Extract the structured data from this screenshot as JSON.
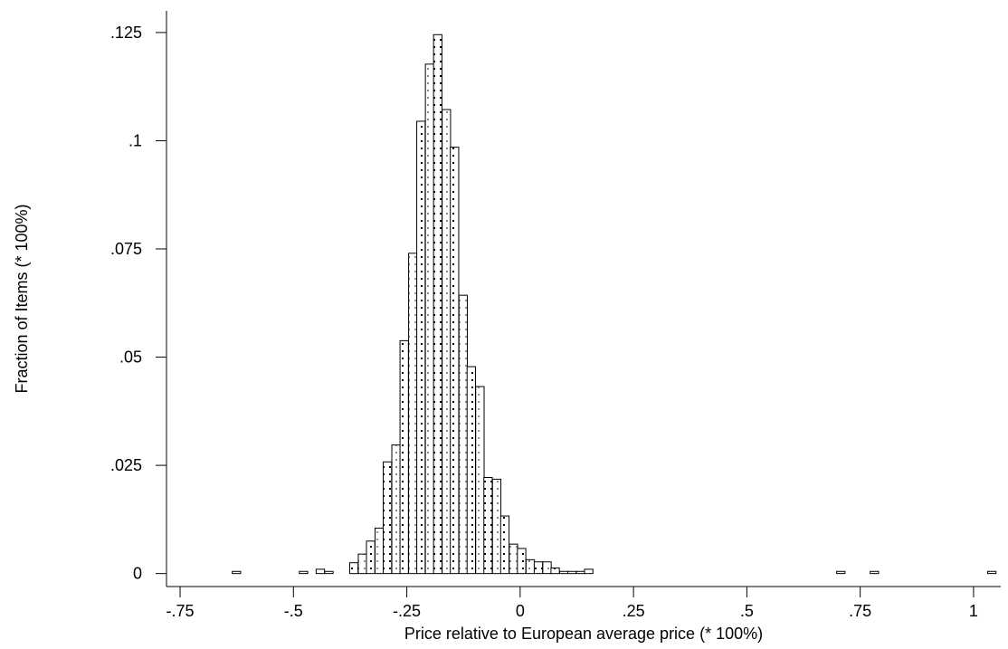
{
  "chart_data": {
    "type": "bar",
    "subtype": "histogram",
    "title": "",
    "xlabel": "Price relative to European average price (* 100%)",
    "ylabel": "Fraction of Items (* 100%)",
    "xlim": [
      -0.78,
      1.06
    ],
    "ylim": [
      -0.003,
      0.13
    ],
    "x_ticks": [
      {
        "value": -0.75,
        "label": "-.75"
      },
      {
        "value": -0.5,
        "label": "-.5"
      },
      {
        "value": -0.25,
        "label": "-.25"
      },
      {
        "value": 0,
        "label": "0"
      },
      {
        "value": 0.25,
        "label": ".25"
      },
      {
        "value": 0.5,
        "label": ".5"
      },
      {
        "value": 0.75,
        "label": ".75"
      },
      {
        "value": 1,
        "label": "1"
      }
    ],
    "y_ticks": [
      {
        "value": 0,
        "label": "0"
      },
      {
        "value": 0.025,
        "label": ".025"
      },
      {
        "value": 0.05,
        "label": ".05"
      },
      {
        "value": 0.075,
        "label": ".075"
      },
      {
        "value": 0.1,
        "label": ".1"
      },
      {
        "value": 0.125,
        "label": ".125"
      }
    ],
    "bin_width": 0.0185,
    "bins": [
      {
        "x": -0.635,
        "value": 0.0005
      },
      {
        "x": -0.487,
        "value": 0.0005
      },
      {
        "x": -0.45,
        "value": 0.001
      },
      {
        "x": -0.431,
        "value": 0.0005
      },
      {
        "x": -0.376,
        "value": 0.0025
      },
      {
        "x": -0.357,
        "value": 0.0045
      },
      {
        "x": -0.339,
        "value": 0.0075
      },
      {
        "x": -0.32,
        "value": 0.0105
      },
      {
        "x": -0.302,
        "value": 0.0258
      },
      {
        "x": -0.283,
        "value": 0.0297
      },
      {
        "x": -0.265,
        "value": 0.0538
      },
      {
        "x": -0.246,
        "value": 0.074
      },
      {
        "x": -0.228,
        "value": 0.1045
      },
      {
        "x": -0.209,
        "value": 0.1177
      },
      {
        "x": -0.191,
        "value": 0.1245
      },
      {
        "x": -0.172,
        "value": 0.1072
      },
      {
        "x": -0.154,
        "value": 0.0985
      },
      {
        "x": -0.135,
        "value": 0.0643
      },
      {
        "x": -0.117,
        "value": 0.0478
      },
      {
        "x": -0.098,
        "value": 0.0432
      },
      {
        "x": -0.08,
        "value": 0.0222
      },
      {
        "x": -0.061,
        "value": 0.0218
      },
      {
        "x": -0.043,
        "value": 0.0133
      },
      {
        "x": -0.024,
        "value": 0.0068
      },
      {
        "x": -0.006,
        "value": 0.0058
      },
      {
        "x": 0.013,
        "value": 0.0032
      },
      {
        "x": 0.031,
        "value": 0.0027
      },
      {
        "x": 0.05,
        "value": 0.0027
      },
      {
        "x": 0.068,
        "value": 0.0013
      },
      {
        "x": 0.087,
        "value": 0.0005
      },
      {
        "x": 0.105,
        "value": 0.0005
      },
      {
        "x": 0.124,
        "value": 0.0005
      },
      {
        "x": 0.142,
        "value": 0.001
      },
      {
        "x": 0.698,
        "value": 0.0005
      },
      {
        "x": 0.772,
        "value": 0.0005
      },
      {
        "x": 1.031,
        "value": 0.0005
      }
    ],
    "grid": false,
    "legend": "none"
  }
}
